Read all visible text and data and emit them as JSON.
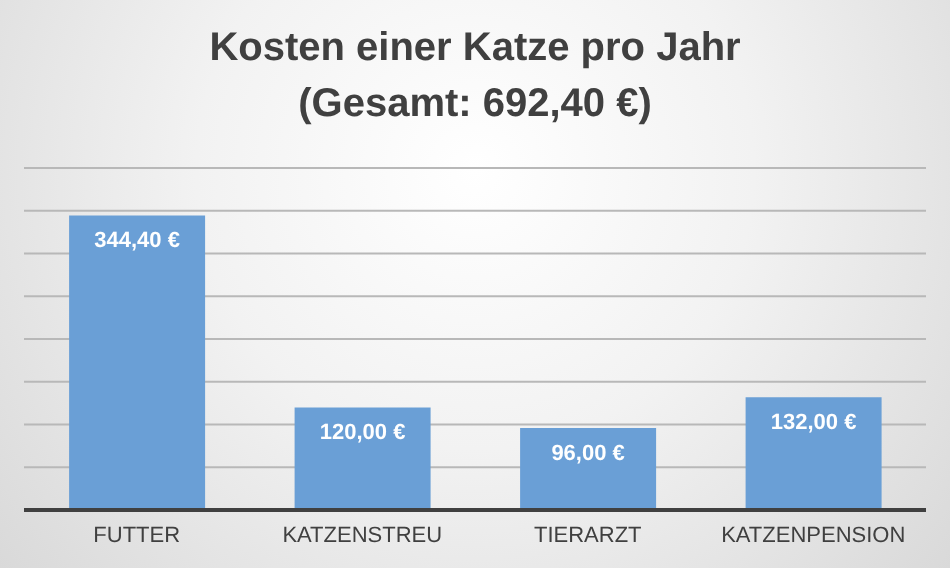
{
  "chart_data": {
    "type": "bar",
    "title": "Kosten einer Katze pro Jahr",
    "subtitle": "(Gesamt: 692,40 €)",
    "categories": [
      "FUTTER",
      "KATZENSTREU",
      "TIERARZT",
      "KATZENPENSION"
    ],
    "values": [
      344.4,
      120,
      96,
      132
    ],
    "value_labels": [
      "344,40 €",
      "120,00 €",
      "96,00 €",
      "132,00 €"
    ],
    "color": "#6a9fd6",
    "ylim": [
      0,
      400
    ],
    "yticks": [
      {
        "value": 0,
        "label": null
      },
      {
        "value": 50,
        "label": null
      },
      {
        "value": 100,
        "label": null
      },
      {
        "value": 150,
        "label": null
      },
      {
        "value": 200,
        "label": null
      },
      {
        "value": 250,
        "label": null
      },
      {
        "value": 300,
        "label": null
      },
      {
        "value": 350,
        "label": null
      },
      {
        "value": 400,
        "label": null
      }
    ],
    "tick_labels": "x",
    "grid": "y",
    "legend": false
  }
}
